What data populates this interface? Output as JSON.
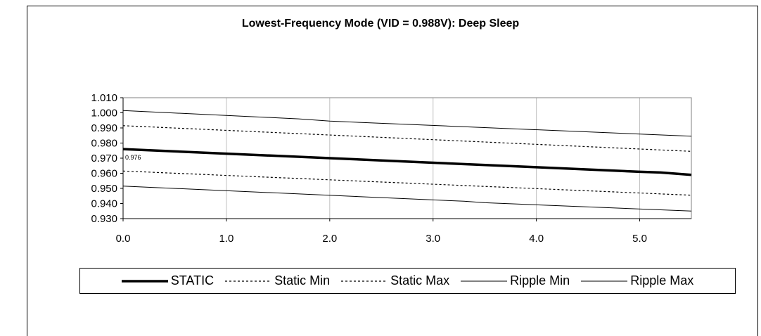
{
  "chart_data": {
    "type": "line",
    "title": "Lowest-Frequency Mode (VID = 0.988V): Deep Sleep",
    "xlabel": "",
    "ylabel": "",
    "xlim": [
      0,
      5.5
    ],
    "ylim": [
      0.93,
      1.01
    ],
    "x_ticks": [
      "0.0",
      "1.0",
      "2.0",
      "3.0",
      "4.0",
      "5.0"
    ],
    "x_tick_values": [
      0,
      1,
      2,
      3,
      4,
      5
    ],
    "y_ticks": [
      "0.930",
      "0.940",
      "0.950",
      "0.960",
      "0.970",
      "0.980",
      "0.990",
      "1.000",
      "1.010"
    ],
    "y_tick_values": [
      0.93,
      0.94,
      0.95,
      0.96,
      0.97,
      0.98,
      0.99,
      1.0,
      1.01
    ],
    "grid": "vertical",
    "legend_position": "bottom",
    "series": [
      {
        "name": "STATIC",
        "style": "solid-thick",
        "color": "#000000",
        "x": [
          0,
          1,
          2,
          3,
          4,
          5,
          5.2,
          5.5
        ],
        "y": [
          0.976,
          0.973,
          0.97,
          0.967,
          0.964,
          0.961,
          0.9605,
          0.959
        ]
      },
      {
        "name": "Static Min",
        "style": "dashed",
        "color": "#000000",
        "x": [
          0,
          5.5
        ],
        "y": [
          0.9615,
          0.9455
        ]
      },
      {
        "name": "Static Max",
        "style": "dashed",
        "color": "#000000",
        "x": [
          0,
          5.5
        ],
        "y": [
          0.9915,
          0.9745
        ]
      },
      {
        "name": "Ripple Min",
        "style": "solid",
        "color": "#000000",
        "x": [
          0,
          3.3,
          3.5,
          5.5
        ],
        "y": [
          0.9515,
          0.9415,
          0.9405,
          0.935
        ]
      },
      {
        "name": "Ripple Max",
        "style": "solid",
        "color": "#000000",
        "x": [
          0,
          1.7,
          2.0,
          5.5
        ],
        "y": [
          1.0015,
          0.996,
          0.9945,
          0.9845
        ]
      }
    ],
    "annotations": [
      {
        "text": "0.976",
        "x": 0,
        "y": 0.976
      }
    ]
  }
}
